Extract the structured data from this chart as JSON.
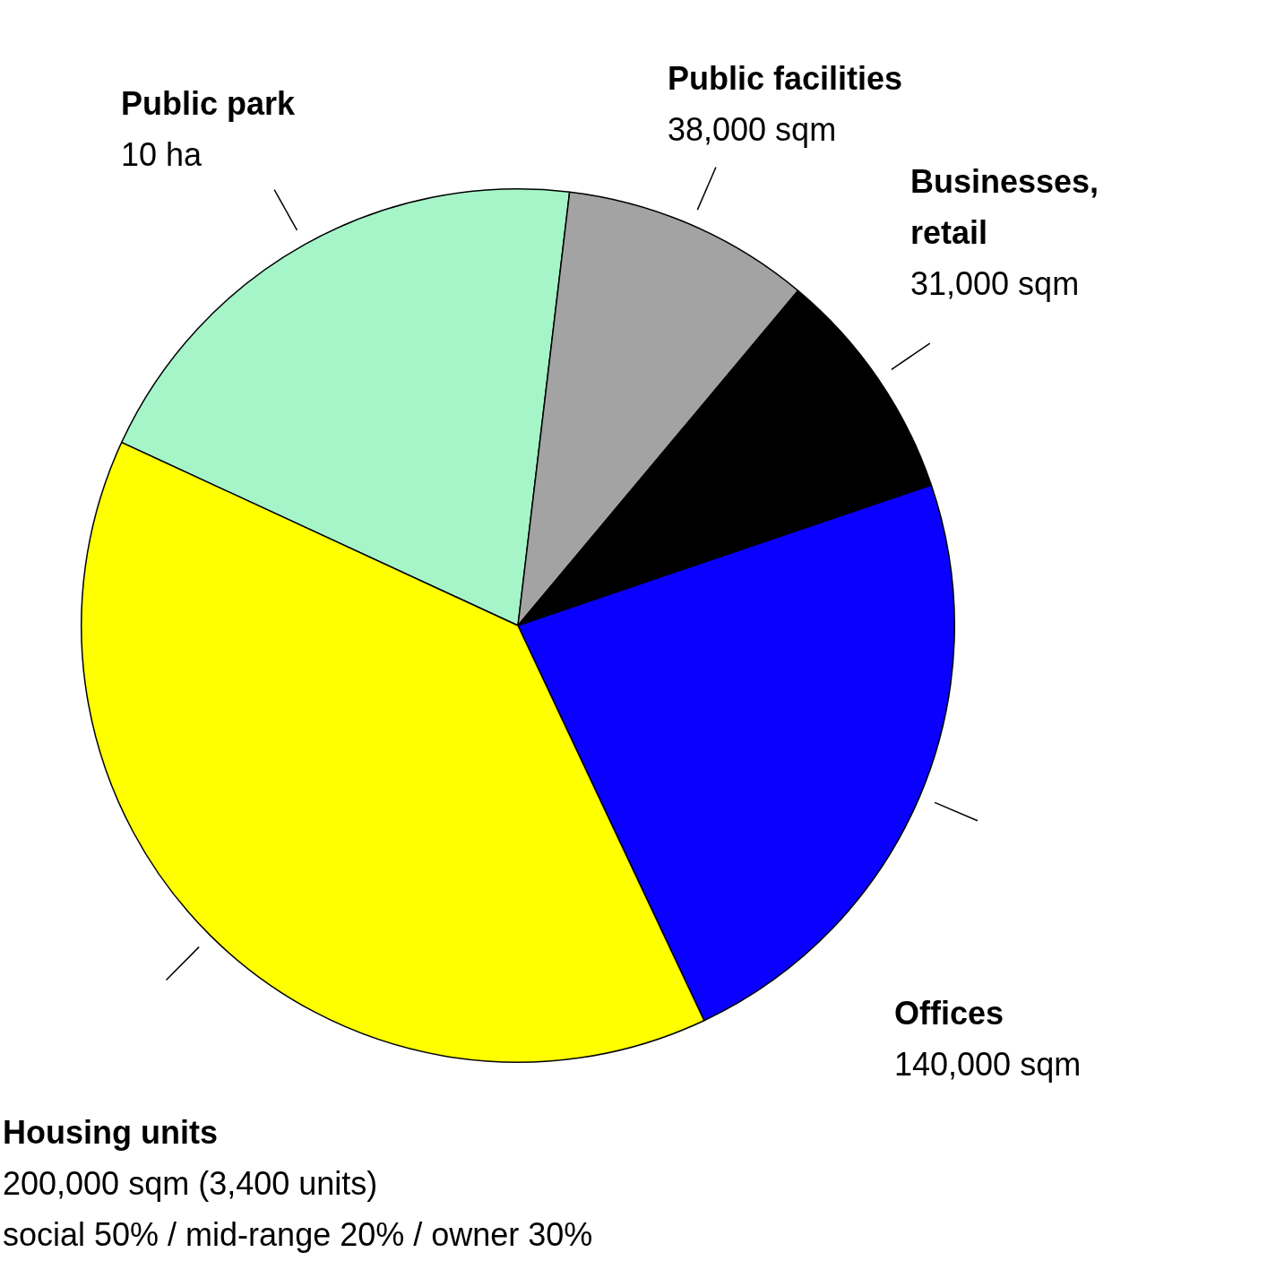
{
  "chart_data": {
    "type": "pie",
    "categories": [
      "Public park",
      "Public facilities",
      "Businesses, retail",
      "Offices",
      "Housing units"
    ],
    "values": [
      20.0,
      9.2,
      8.7,
      23.2,
      38.9
    ],
    "colors": [
      "#a5f5c8",
      "#a3a3a3",
      "#000000",
      "#0a00ff",
      "#ffff00"
    ],
    "annotations": [
      {
        "text": "10 ha",
        "x": "Public park"
      },
      {
        "text": "38,000 sqm",
        "x": "Public facilities"
      },
      {
        "text": "31,000 sqm",
        "x": "Businesses, retail"
      },
      {
        "text": "140,000 sqm",
        "x": "Offices"
      },
      {
        "text": "200,000 sqm (3,400 units)",
        "x": "Housing units"
      },
      {
        "text": "social 50% / mid-range 20% / owner 30%",
        "x": "Housing units"
      }
    ],
    "legend": false
  }
}
